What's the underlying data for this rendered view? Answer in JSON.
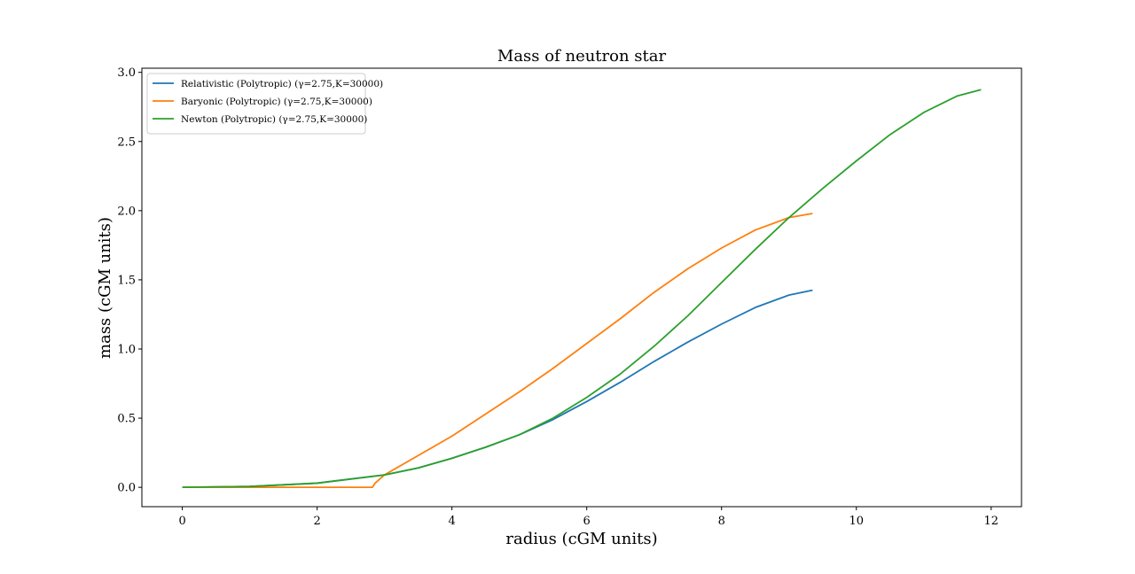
{
  "chart_data": {
    "type": "line",
    "title": "Mass of neutron star",
    "xlabel": "radius (cGM units)",
    "ylabel": "mass (cGM units)",
    "xlim": [
      -0.6,
      12.45
    ],
    "ylim": [
      -0.14,
      3.03
    ],
    "xticks": [
      0,
      2,
      4,
      6,
      8,
      10,
      12
    ],
    "xtick_labels": [
      "0",
      "2",
      "4",
      "6",
      "8",
      "10",
      "12"
    ],
    "yticks": [
      0.0,
      0.5,
      1.0,
      1.5,
      2.0,
      2.5,
      3.0
    ],
    "ytick_labels": [
      "0.0",
      "0.5",
      "1.0",
      "1.5",
      "2.0",
      "2.5",
      "3.0"
    ],
    "grid": false,
    "legend_position": "top-left",
    "series": [
      {
        "name": "Relativistic (Polytropic) (γ=2.75,K=30000)",
        "color": "#1f77b4",
        "points": [
          [
            0.0,
            0.0
          ],
          [
            1.0,
            0.006
          ],
          [
            2.0,
            0.03
          ],
          [
            3.0,
            0.09
          ],
          [
            3.5,
            0.14
          ],
          [
            4.0,
            0.21
          ],
          [
            4.5,
            0.29
          ],
          [
            5.0,
            0.38
          ],
          [
            5.5,
            0.49
          ],
          [
            6.0,
            0.62
          ],
          [
            6.5,
            0.76
          ],
          [
            7.0,
            0.91
          ],
          [
            7.5,
            1.05
          ],
          [
            8.0,
            1.18
          ],
          [
            8.5,
            1.3
          ],
          [
            9.0,
            1.39
          ],
          [
            9.35,
            1.425
          ]
        ]
      },
      {
        "name": "Baryonic (Polytropic) (γ=2.75,K=30000)",
        "color": "#ff7f0e",
        "points": [
          [
            0.0,
            0.0
          ],
          [
            1.0,
            0.0
          ],
          [
            2.0,
            0.0
          ],
          [
            2.82,
            0.0
          ],
          [
            2.86,
            0.03
          ],
          [
            3.0,
            0.09
          ],
          [
            3.5,
            0.23
          ],
          [
            4.0,
            0.37
          ],
          [
            4.5,
            0.53
          ],
          [
            5.0,
            0.69
          ],
          [
            5.5,
            0.86
          ],
          [
            6.0,
            1.04
          ],
          [
            6.5,
            1.22
          ],
          [
            7.0,
            1.41
          ],
          [
            7.5,
            1.58
          ],
          [
            8.0,
            1.73
          ],
          [
            8.5,
            1.86
          ],
          [
            9.0,
            1.95
          ],
          [
            9.35,
            1.98
          ]
        ]
      },
      {
        "name": "Newton (Polytropic) (γ=2.75,K=30000)",
        "color": "#2ca02c",
        "points": [
          [
            0.0,
            0.0
          ],
          [
            1.0,
            0.006
          ],
          [
            2.0,
            0.03
          ],
          [
            3.0,
            0.09
          ],
          [
            3.5,
            0.14
          ],
          [
            4.0,
            0.21
          ],
          [
            4.5,
            0.29
          ],
          [
            5.0,
            0.38
          ],
          [
            5.5,
            0.5
          ],
          [
            6.0,
            0.65
          ],
          [
            6.5,
            0.82
          ],
          [
            7.0,
            1.02
          ],
          [
            7.5,
            1.24
          ],
          [
            8.0,
            1.48
          ],
          [
            8.5,
            1.72
          ],
          [
            9.0,
            1.95
          ],
          [
            9.5,
            2.16
          ],
          [
            10.0,
            2.36
          ],
          [
            10.5,
            2.55
          ],
          [
            11.0,
            2.71
          ],
          [
            11.5,
            2.83
          ],
          [
            11.85,
            2.875
          ]
        ]
      }
    ]
  }
}
